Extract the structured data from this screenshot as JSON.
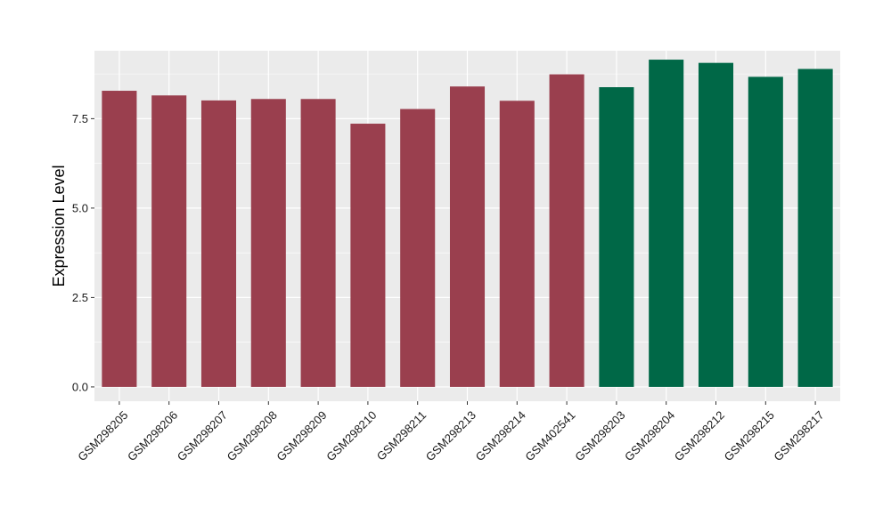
{
  "chart_data": {
    "type": "bar",
    "title": "",
    "xlabel": "",
    "ylabel": "Expression Level",
    "ylim": [
      -0.4,
      9.4
    ],
    "yticks": [
      0.0,
      2.5,
      5.0,
      7.5
    ],
    "ytick_labels": [
      "0.0",
      "2.5",
      "5.0",
      "7.5"
    ],
    "categories": [
      "GSM298205",
      "GSM298206",
      "GSM298207",
      "GSM298208",
      "GSM298209",
      "GSM298210",
      "GSM298211",
      "GSM298213",
      "GSM298214",
      "GSM402541",
      "GSM298203",
      "GSM298204",
      "GSM298212",
      "GSM298215",
      "GSM298217"
    ],
    "values": [
      8.28,
      8.15,
      8.01,
      8.05,
      8.05,
      7.36,
      7.77,
      8.4,
      8.0,
      8.74,
      8.38,
      9.15,
      9.06,
      8.67,
      8.89
    ],
    "bar_colors": [
      "#9a3f4e",
      "#9a3f4e",
      "#9a3f4e",
      "#9a3f4e",
      "#9a3f4e",
      "#9a3f4e",
      "#9a3f4e",
      "#9a3f4e",
      "#9a3f4e",
      "#9a3f4e",
      "#006847",
      "#006847",
      "#006847",
      "#006847",
      "#006847"
    ],
    "grid": true,
    "background": "#ebebeb",
    "grid_color": "#ffffff",
    "legend": "none"
  }
}
